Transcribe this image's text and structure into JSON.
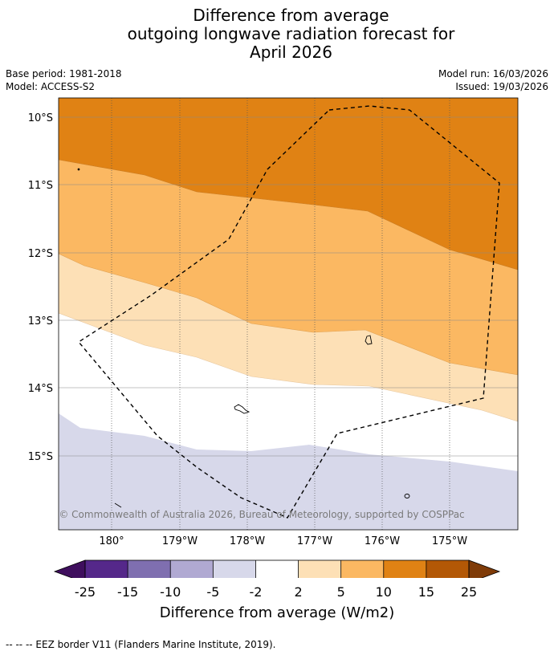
{
  "title": {
    "line1": "Difference from average",
    "line2": "outgoing longwave radiation forecast for",
    "line3": "April 2026"
  },
  "meta": {
    "base_period": "Base period: 1981-2018",
    "model": "Model: ACCESS-S2",
    "model_run": "Model run: 16/03/2026",
    "issued": "Issued: 19/03/2026"
  },
  "map": {
    "lat_labels": [
      "10°S",
      "11°S",
      "12°S",
      "13°S",
      "14°S",
      "15°S"
    ],
    "lon_labels": [
      "180°",
      "179°W",
      "178°W",
      "177°W",
      "176°W",
      "175°W"
    ],
    "attribution": "© Commonwealth of Australia 2026, Bureau of Meteorology, supported by COSPPac"
  },
  "colorbar": {
    "ticks": [
      "-25",
      "-15",
      "-10",
      "-5",
      "-2",
      "2",
      "5",
      "10",
      "15",
      "25"
    ],
    "colors": [
      "#3f0f5e",
      "#55288a",
      "#7f6fb0",
      "#b0a9d2",
      "#d7d8ea",
      "#ffffff",
      "#fde0b6",
      "#fbb862",
      "#e08214",
      "#b35806",
      "#7f3b08"
    ],
    "title": "Difference from average (W/m2)"
  },
  "footnote": "--  --  -- EEZ border V11 (Flanders Marine Institute, 2019)."
}
